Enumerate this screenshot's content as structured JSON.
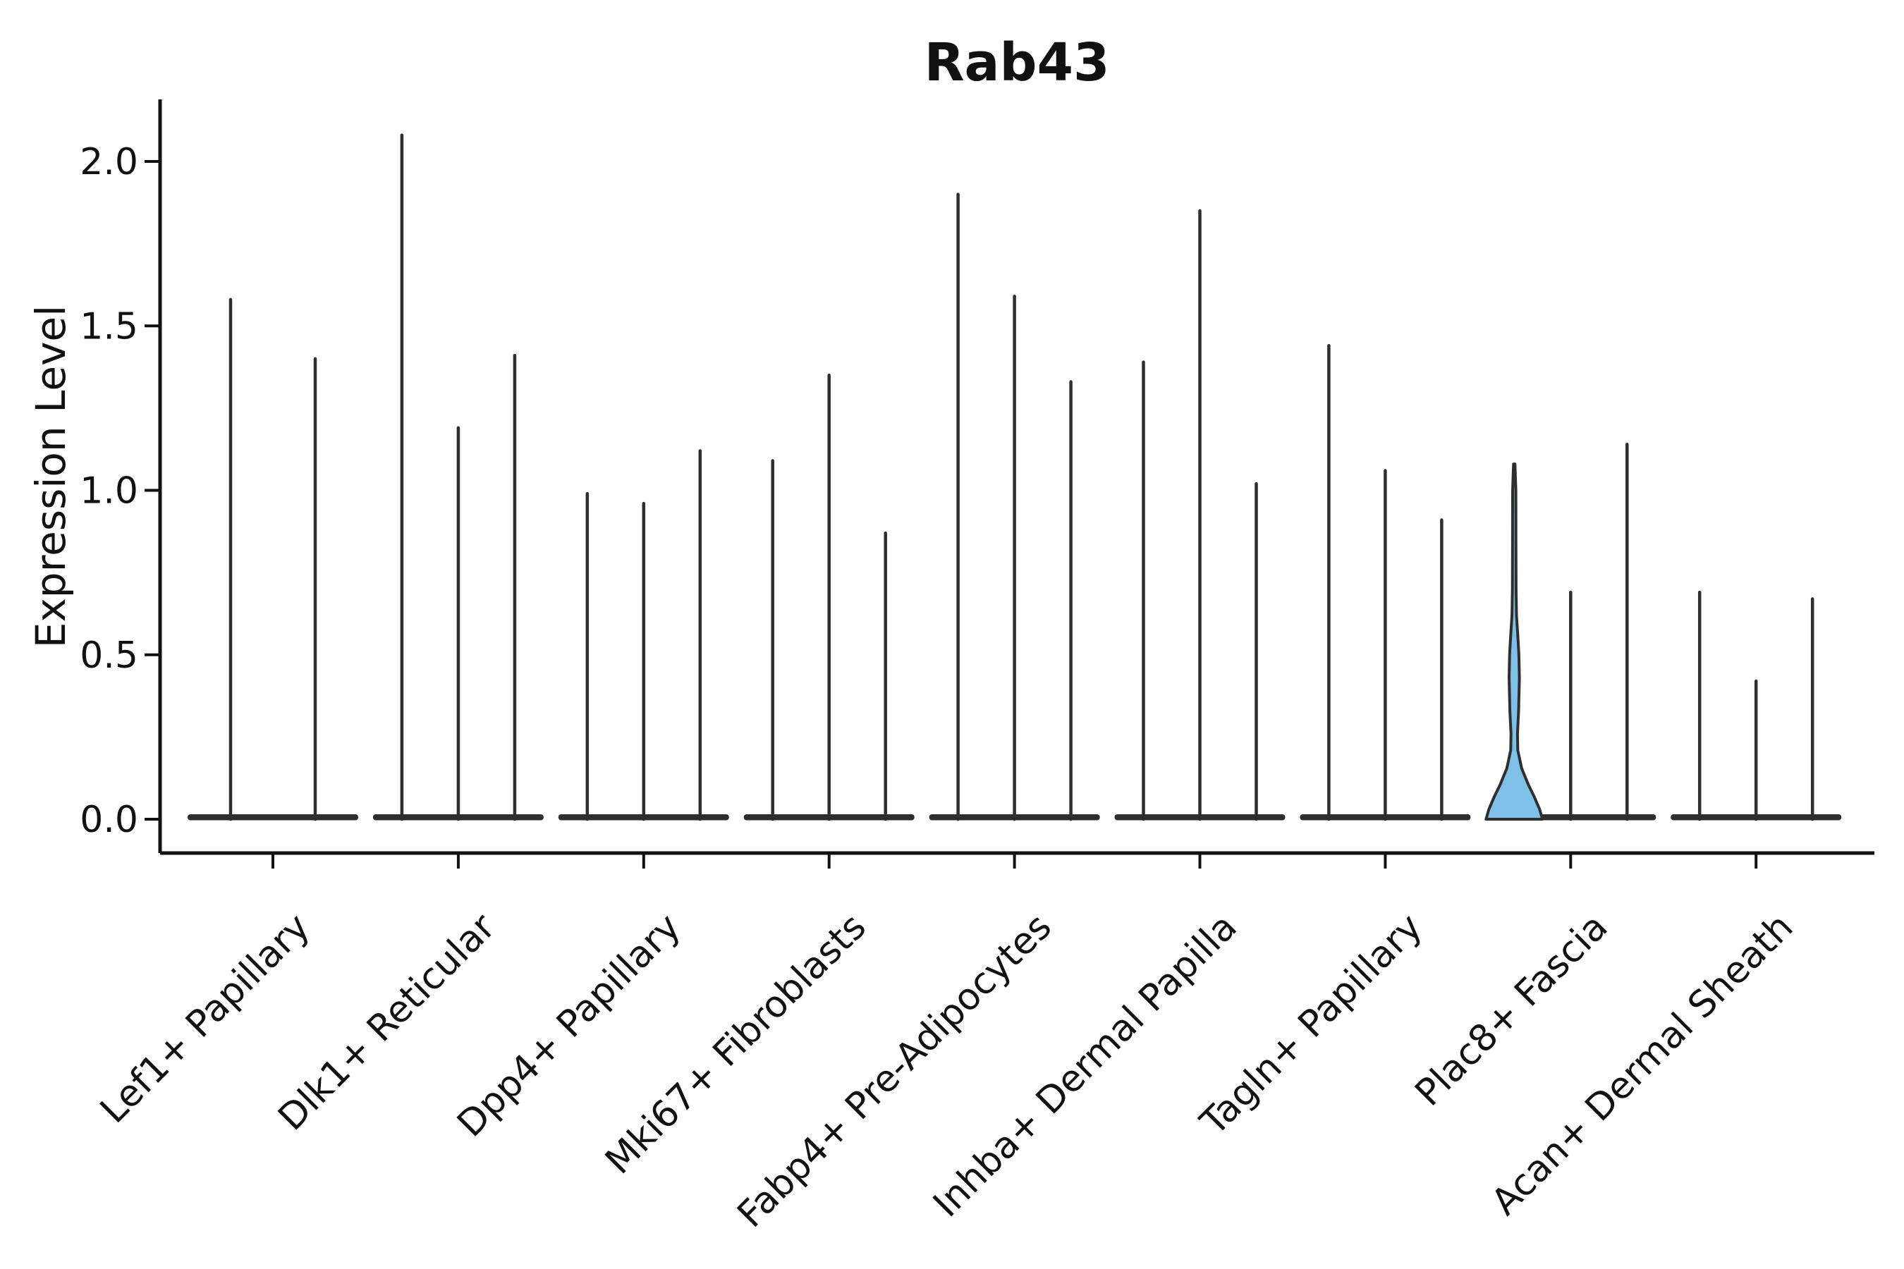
{
  "chart_data": {
    "type": "violin",
    "title": "Rab43",
    "ylabel": "Expression Level",
    "xlabel": "",
    "ylim": [
      -0.1,
      2.19
    ],
    "yticks": [
      "0.0",
      "0.5",
      "1.0",
      "1.5",
      "2.0"
    ],
    "ytick_values": [
      0.0,
      0.5,
      1.0,
      1.5,
      2.0
    ],
    "grid": false,
    "legend_position": "none",
    "violins_per_category": 3,
    "categories": [
      "Lef1+ Papillary",
      "Dlk1+ Reticular",
      "Dpp4+ Papillary",
      "Mki67+ Fibroblasts",
      "Fabp4+ Pre-Adipocytes",
      "Inhba+ Dermal Papilla",
      "Tagln+ Papillary",
      "Plac8+ Fascia",
      "Acan+ Dermal Sheath"
    ],
    "series": [
      {
        "category": "Lef1+ Papillary",
        "max_values": [
          1.58,
          0.0,
          1.4
        ],
        "spread": 60
      },
      {
        "category": "Dlk1+ Reticular",
        "max_values": [
          2.08,
          1.19,
          1.41
        ],
        "spread": 80
      },
      {
        "category": "Dpp4+ Papillary",
        "max_values": [
          0.99,
          0.96,
          1.12
        ],
        "spread": 80
      },
      {
        "category": "Mki67+ Fibroblasts",
        "max_values": [
          1.09,
          1.35,
          0.87
        ],
        "spread": 80
      },
      {
        "category": "Fabp4+ Pre-Adipocytes",
        "max_values": [
          1.9,
          1.59,
          1.33
        ],
        "spread": 80
      },
      {
        "category": "Inhba+ Dermal Papilla",
        "max_values": [
          1.39,
          1.85,
          1.02
        ],
        "spread": 80
      },
      {
        "category": "Tagln+ Papillary",
        "max_values": [
          1.44,
          1.06,
          0.91
        ],
        "spread": 80
      },
      {
        "category": "Plac8+ Fascia",
        "max_values": [
          1.08,
          0.69,
          1.14
        ],
        "spread": 80
      },
      {
        "category": "Acan+ Dermal Sheath",
        "max_values": [
          0.69,
          0.42,
          0.67
        ],
        "spread": 80
      }
    ],
    "highlight": {
      "category": "Plac8+ Fascia",
      "category_index": 7,
      "violin_index": 0,
      "max_value": 1.08,
      "fill_color": "#7ec0e8",
      "density_profile": [
        [
          0.0,
          40.0
        ],
        [
          0.03,
          36.0
        ],
        [
          0.07,
          28.0
        ],
        [
          0.105,
          20.0
        ],
        [
          0.155,
          10.5
        ],
        [
          0.21,
          5.0
        ],
        [
          0.26,
          4.6
        ],
        [
          0.33,
          6.2
        ],
        [
          0.43,
          7.3
        ],
        [
          0.5,
          6.6
        ],
        [
          0.56,
          5.0
        ],
        [
          0.62,
          3.2
        ],
        [
          0.7,
          2.6
        ],
        [
          0.85,
          2.4
        ],
        [
          1.0,
          2.3
        ],
        [
          1.08,
          1.0
        ]
      ]
    },
    "colors": {
      "spike": "#2e2e2e",
      "axis": "#111111",
      "background": "#ffffff",
      "highlight_fill": "#7ec0e8"
    }
  }
}
